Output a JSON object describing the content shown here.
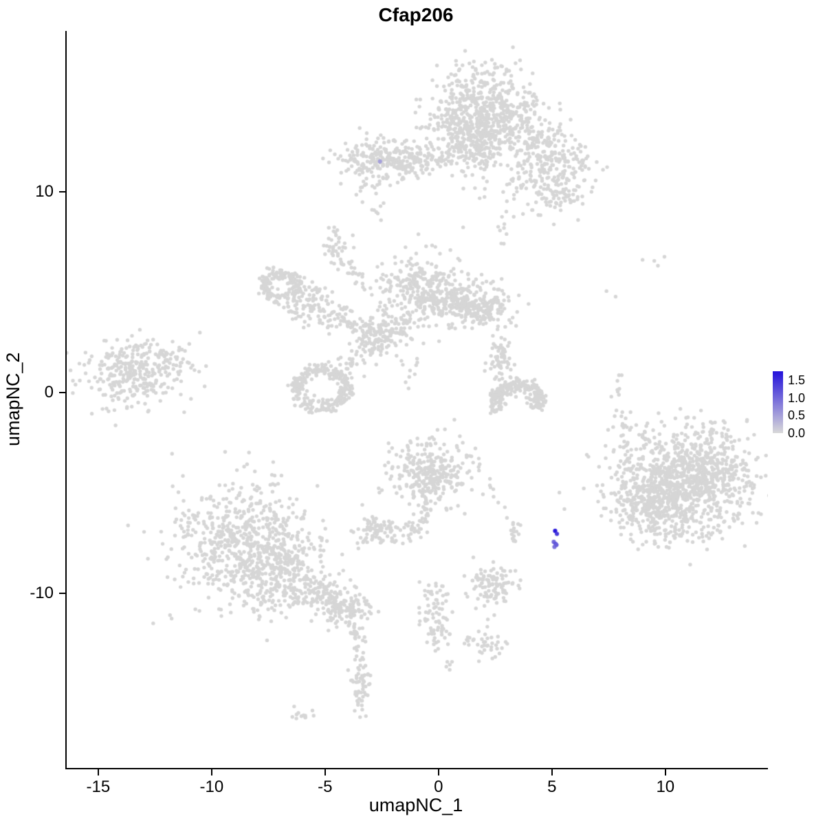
{
  "title": "Cfap206",
  "axes": {
    "x_label": "umapNC_1",
    "y_label": "umapNC_2",
    "x_ticks": [
      "-15",
      "-10",
      "-5",
      "0",
      "5",
      "10"
    ],
    "x_tick_values": [
      -15,
      -10,
      -5,
      0,
      5,
      10
    ],
    "y_ticks": [
      "10",
      "0",
      "-10"
    ],
    "y_tick_values": [
      10,
      0,
      -10
    ]
  },
  "legend": {
    "labels": [
      "1.5",
      "1.0",
      "0.5",
      "0.0"
    ],
    "values": [
      1.5,
      1.0,
      0.5,
      0.0
    ],
    "max_value": 1.75,
    "low_color": "#D9D9D9",
    "high_color": "#2412DB"
  },
  "colors": {
    "point_grey": "#D6D6D6",
    "axis": "#000000",
    "background": "#FFFFFF"
  },
  "chart_data": {
    "type": "scatter",
    "title": "Cfap206",
    "xlabel": "umapNC_1",
    "ylabel": "umapNC_2",
    "xlim": [
      -16.45,
      14.46
    ],
    "ylim": [
      -18.71,
      18.0
    ],
    "x_ticks": [
      -15,
      -10,
      -5,
      0,
      5,
      10
    ],
    "y_ticks": [
      10,
      0,
      -10
    ],
    "grid": false,
    "legend_position": "right",
    "color_scale": {
      "low": "#D9D9D9",
      "high": "#2412DB",
      "min": 0.0,
      "max": 1.75,
      "tick_values": [
        0.0,
        0.5,
        1.0,
        1.5
      ]
    },
    "point_radius_px": 2.7,
    "seed": 42,
    "clusters": [
      {
        "shape": "blob",
        "cx": 1.8,
        "cy": 14.3,
        "sx": 1.25,
        "sy": 1.0,
        "n": 420
      },
      {
        "shape": "blob",
        "cx": 1.2,
        "cy": 13.0,
        "sx": 0.9,
        "sy": 0.8,
        "n": 190
      },
      {
        "shape": "blob",
        "cx": 1.6,
        "cy": 11.9,
        "sx": 0.55,
        "sy": 0.55,
        "n": 90
      },
      {
        "shape": "blob",
        "cx": 3.2,
        "cy": 13.0,
        "sx": 0.8,
        "sy": 0.7,
        "n": 90
      },
      {
        "shape": "blob",
        "cx": 4.7,
        "cy": 12.0,
        "sx": 0.85,
        "sy": 0.75,
        "n": 150
      },
      {
        "shape": "blob",
        "cx": 4.3,
        "cy": 10.4,
        "sx": 1.1,
        "sy": 0.9,
        "n": 100
      },
      {
        "shape": "blob",
        "cx": 5.6,
        "cy": 11.1,
        "sx": 0.6,
        "sy": 0.8,
        "n": 55
      },
      {
        "shape": "blob",
        "cx": 5.3,
        "cy": 9.6,
        "sx": 0.5,
        "sy": 0.5,
        "n": 35
      },
      {
        "shape": "blob",
        "cx": -2.4,
        "cy": 11.6,
        "sx": 1.0,
        "sy": 0.55,
        "n": 260
      },
      {
        "shape": "strip",
        "x1": -1.3,
        "y1": 11.5,
        "x2": 0.7,
        "y2": 11.7,
        "jit": 0.3,
        "n": 50
      },
      {
        "shape": "blob",
        "cx": -2.8,
        "cy": 9.0,
        "sx": 0.2,
        "sy": 0.25,
        "n": 7
      },
      {
        "shape": "blob",
        "cx": -3.2,
        "cy": 10.3,
        "sx": 0.3,
        "sy": 0.3,
        "n": 10
      },
      {
        "shape": "blob",
        "cx": -4.6,
        "cy": 7.4,
        "sx": 0.3,
        "sy": 0.45,
        "n": 32
      },
      {
        "shape": "strip",
        "x1": -4.4,
        "y1": 6.7,
        "x2": -3.3,
        "y2": 5.4,
        "jit": 0.25,
        "n": 28
      },
      {
        "shape": "ring",
        "cx": -7.0,
        "cy": 5.3,
        "r": 0.75,
        "t": 0.5,
        "n": 170
      },
      {
        "shape": "blob",
        "cx": -5.6,
        "cy": 4.4,
        "sx": 0.6,
        "sy": 0.5,
        "n": 90
      },
      {
        "shape": "strip",
        "x1": -5.0,
        "y1": 4.0,
        "x2": -3.3,
        "y2": 3.2,
        "jit": 0.3,
        "n": 45
      },
      {
        "shape": "blob",
        "cx": -2.7,
        "cy": 2.9,
        "sx": 0.5,
        "sy": 0.45,
        "n": 110
      },
      {
        "shape": "strip",
        "x1": -3.1,
        "y1": 2.3,
        "x2": -4.3,
        "y2": 1.2,
        "jit": 0.3,
        "n": 40
      },
      {
        "shape": "ring",
        "cx": -5.2,
        "cy": 0.2,
        "r": 1.05,
        "t": 0.55,
        "n": 260
      },
      {
        "shape": "blob",
        "cx": -0.9,
        "cy": 5.2,
        "sx": 0.9,
        "sy": 0.85,
        "n": 280
      },
      {
        "shape": "blob",
        "cx": 0.3,
        "cy": 4.4,
        "sx": 0.6,
        "sy": 0.6,
        "n": 90
      },
      {
        "shape": "blob",
        "cx": 1.6,
        "cy": 4.3,
        "sx": 0.75,
        "sy": 0.6,
        "n": 230
      },
      {
        "shape": "strip",
        "x1": -1.5,
        "y1": 3.6,
        "x2": -2.4,
        "y2": 2.6,
        "jit": 0.35,
        "n": 40
      },
      {
        "shape": "blob",
        "cx": -1.2,
        "cy": 0.9,
        "sx": 0.3,
        "sy": 0.4,
        "n": 10
      },
      {
        "shape": "blob",
        "cx": -13.5,
        "cy": 1.0,
        "sx": 1.1,
        "sy": 0.8,
        "n": 330
      },
      {
        "shape": "blob",
        "cx": -12.0,
        "cy": 1.7,
        "sx": 0.5,
        "sy": 0.5,
        "n": 25
      },
      {
        "shape": "blob",
        "cx": 2.7,
        "cy": 1.7,
        "sx": 0.3,
        "sy": 0.55,
        "n": 60
      },
      {
        "shape": "ring",
        "cx": 3.4,
        "cy": -0.5,
        "r": 0.95,
        "t": 0.55,
        "n": 230,
        "a0": -30,
        "a1": 210
      },
      {
        "shape": "strip",
        "x1": 7.9,
        "y1": 1.2,
        "x2": 8.1,
        "y2": -2.3,
        "jit": 0.2,
        "n": 14
      },
      {
        "shape": "blob",
        "cx": 9.5,
        "cy": 6.7,
        "sx": 0.3,
        "sy": 0.2,
        "n": 4
      },
      {
        "shape": "blob",
        "cx": 7.4,
        "cy": 4.9,
        "sx": 0.12,
        "sy": 0.12,
        "n": 2
      },
      {
        "shape": "blob",
        "cx": 10.8,
        "cy": -4.6,
        "sx": 1.5,
        "sy": 1.3,
        "n": 900
      },
      {
        "shape": "blob",
        "cx": 9.2,
        "cy": -5.5,
        "sx": 0.9,
        "sy": 0.9,
        "n": 220
      },
      {
        "shape": "blob",
        "cx": 12.2,
        "cy": -3.6,
        "sx": 0.8,
        "sy": 0.8,
        "n": 160
      },
      {
        "shape": "blob",
        "cx": 8.6,
        "cy": -2.2,
        "sx": 0.5,
        "sy": 0.6,
        "n": 25
      },
      {
        "shape": "blob",
        "cx": -0.4,
        "cy": -3.9,
        "sx": 0.85,
        "sy": 0.85,
        "n": 300
      },
      {
        "shape": "strip",
        "x1": -0.6,
        "y1": -5.3,
        "x2": -1.1,
        "y2": -7.0,
        "jit": 0.25,
        "n": 35
      },
      {
        "shape": "blob",
        "cx": -2.6,
        "cy": -6.9,
        "sx": 0.55,
        "sy": 0.4,
        "n": 90
      },
      {
        "shape": "blob",
        "cx": 2.5,
        "cy": -5.0,
        "sx": 0.3,
        "sy": 0.4,
        "n": 8
      },
      {
        "shape": "strip",
        "x1": -0.3,
        "y1": -9.7,
        "x2": -0.1,
        "y2": -12.4,
        "jit": 0.3,
        "n": 80
      },
      {
        "shape": "blob",
        "cx": 2.4,
        "cy": -9.6,
        "sx": 0.55,
        "sy": 0.5,
        "n": 110
      },
      {
        "shape": "strip",
        "x1": 3.2,
        "y1": -6.4,
        "x2": 3.3,
        "y2": -7.8,
        "jit": 0.15,
        "n": 16
      },
      {
        "shape": "blob",
        "cx": 2.3,
        "cy": -12.5,
        "sx": 0.35,
        "sy": 0.35,
        "n": 30
      },
      {
        "shape": "blob",
        "cx": 1.3,
        "cy": -12.3,
        "sx": 0.2,
        "sy": 0.2,
        "n": 8
      },
      {
        "shape": "blob",
        "cx": 0.5,
        "cy": -13.5,
        "sx": 0.15,
        "sy": 0.15,
        "n": 5
      },
      {
        "shape": "blob",
        "cx": -8.6,
        "cy": -7.6,
        "sx": 1.5,
        "sy": 1.5,
        "n": 700
      },
      {
        "shape": "blob",
        "cx": -7.0,
        "cy": -9.3,
        "sx": 1.0,
        "sy": 0.8,
        "n": 200
      },
      {
        "shape": "strip",
        "x1": -5.8,
        "y1": -9.8,
        "x2": -4.7,
        "y2": -10.4,
        "jit": 0.35,
        "n": 70
      },
      {
        "shape": "blob",
        "cx": -4.2,
        "cy": -10.7,
        "sx": 0.55,
        "sy": 0.5,
        "n": 130
      },
      {
        "shape": "strip",
        "x1": -3.8,
        "y1": -11.6,
        "x2": -3.5,
        "y2": -13.2,
        "jit": 0.2,
        "n": 25
      },
      {
        "shape": "blob",
        "cx": -3.5,
        "cy": -14.5,
        "sx": 0.25,
        "sy": 0.7,
        "n": 55
      },
      {
        "shape": "blob",
        "cx": -6.1,
        "cy": -16.1,
        "sx": 0.3,
        "sy": 0.15,
        "n": 12
      },
      {
        "shape": "blob",
        "cx": 2.9,
        "cy": 8.4,
        "sx": 0.25,
        "sy": 0.4,
        "n": 8
      }
    ],
    "expression_points": [
      {
        "x": -2.64,
        "y": 11.5,
        "value": 0.5
      },
      {
        "x": 5.08,
        "y": -6.9,
        "value": 1.7
      },
      {
        "x": 5.16,
        "y": -7.05,
        "value": 1.4
      },
      {
        "x": 5.02,
        "y": -7.45,
        "value": 1.0
      },
      {
        "x": 5.1,
        "y": -7.55,
        "value": 1.2
      },
      {
        "x": 5.05,
        "y": -7.7,
        "value": 0.9
      },
      {
        "x": 5.14,
        "y": -7.6,
        "value": 1.1
      }
    ]
  }
}
